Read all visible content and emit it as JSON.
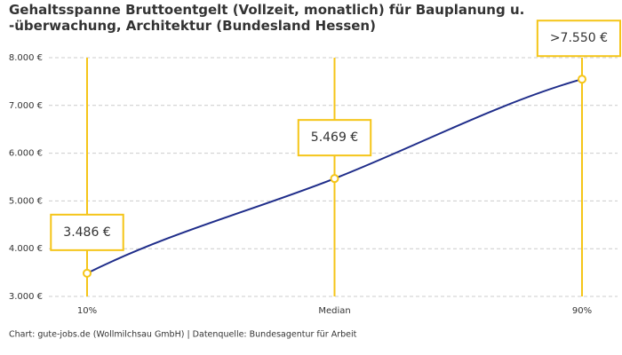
{
  "chart_data": {
    "type": "line",
    "title": "Gehaltsspanne Bruttoentgelt (Vollzeit, monatlich) für Bauplanung u. -überwachung, Architektur (Bundesland Hessen)",
    "categories": [
      "10%",
      "Median",
      "90%"
    ],
    "values": [
      3486,
      5469,
      7550
    ],
    "value_labels": [
      "3.486 €",
      "5.469 €",
      ">7.550 €"
    ],
    "color": "#1f2d8a",
    "marker_color": "#f5c518",
    "ylim": [
      3000,
      8000
    ],
    "yticks": [
      {
        "value": 3000,
        "label": "3.000 €"
      },
      {
        "value": 4000,
        "label": "4.000 €"
      },
      {
        "value": 5000,
        "label": "5.000 €"
      },
      {
        "value": 6000,
        "label": "6.000 €"
      },
      {
        "value": 7000,
        "label": "7.000 €"
      },
      {
        "value": 8000,
        "label": "8.000 €"
      }
    ],
    "grid": true,
    "source": "Chart: gute-jobs.de (Wollmilchsau GmbH) | Datenquelle: Bundesagentur für Arbeit"
  }
}
